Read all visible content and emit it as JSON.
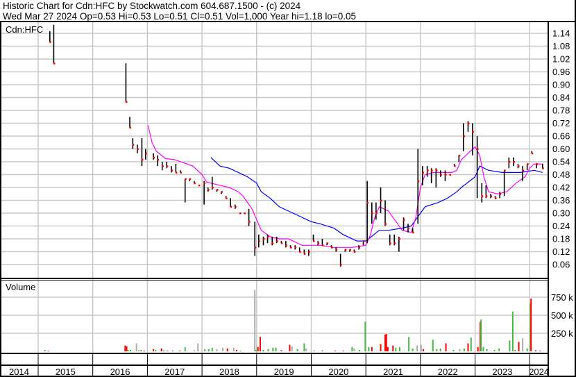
{
  "header": {
    "title": "Historic Chart for Cdn:HFC by Stockwatch.com 604.687.1500 - (c) 2024",
    "summary": "Wed Mar 27 2024  Op=0.53  Hi=0.53  Lo=0.51  Cl=0.51  Vol=1,000  Year hi=1.18  lo=0.05"
  },
  "colors": {
    "up": "#44bb44",
    "down": "#ff0000",
    "flat": "#aaaaaa",
    "ma_short": "#ff00ff",
    "ma_long": "#0000ff",
    "close_dot": "#ff0000",
    "grid": "#c8c8c8"
  },
  "chart_data": {
    "type": "line",
    "symbol_label": "Cdn:HFC",
    "volume_label": "Volume",
    "x_ticks": [
      "2014",
      "2015",
      "2016",
      "2017",
      "2018",
      "2019",
      "2020",
      "2021",
      "2022",
      "2023",
      "2024"
    ],
    "y_ticks": [
      "0.06",
      "0.12",
      "0.18",
      "0.24",
      "0.30",
      "0.36",
      "0.42",
      "0.48",
      "0.54",
      "0.60",
      "0.66",
      "0.72",
      "0.78",
      "0.84",
      "0.90",
      "0.96",
      "1.02",
      "1.08",
      "1.14"
    ],
    "ylim": [
      0.0,
      1.2
    ],
    "volume_ticks": [
      {
        "value": 250000,
        "label": "250 k"
      },
      {
        "value": 500000,
        "label": "500 k"
      },
      {
        "value": 750000,
        "label": "750 k"
      }
    ],
    "volume_ylim": [
      0,
      1000000
    ],
    "grid": true,
    "price_bars_fields": [
      "date",
      "high",
      "low",
      "close"
    ],
    "price_bars": [
      [
        "2015-03-20",
        1.15,
        1.1,
        1.1
      ],
      [
        "2015-04-15",
        1.18,
        1.0,
        1.0
      ],
      [
        "2016-08-10",
        1.0,
        0.82,
        0.82
      ],
      [
        "2016-09-05",
        0.75,
        0.7,
        0.7
      ],
      [
        "2016-09-25",
        0.65,
        0.6,
        0.62
      ],
      [
        "2016-10-25",
        0.62,
        0.58,
        0.6
      ],
      [
        "2016-11-25",
        0.65,
        0.52,
        0.55
      ],
      [
        "2016-12-20",
        0.6,
        0.55,
        0.58
      ],
      [
        "2017-02-10",
        0.58,
        0.55,
        0.56
      ],
      [
        "2017-03-10",
        0.57,
        0.52,
        0.55
      ],
      [
        "2017-04-10",
        0.54,
        0.5,
        0.52
      ],
      [
        "2017-05-10",
        0.54,
        0.51,
        0.52
      ],
      [
        "2017-06-10",
        0.52,
        0.49,
        0.5
      ],
      [
        "2017-07-10",
        0.53,
        0.49,
        0.49
      ],
      [
        "2017-08-10",
        0.5,
        0.49,
        0.49
      ],
      [
        "2017-09-10",
        0.46,
        0.35,
        0.46
      ],
      [
        "2017-10-10",
        0.46,
        0.45,
        0.46
      ],
      [
        "2017-11-10",
        0.45,
        0.44,
        0.44
      ],
      [
        "2017-12-10",
        0.43,
        0.43,
        0.43
      ],
      [
        "2018-01-15",
        0.45,
        0.34,
        0.44
      ],
      [
        "2018-02-10",
        0.42,
        0.4,
        0.41
      ],
      [
        "2018-03-10",
        0.47,
        0.41,
        0.42
      ],
      [
        "2018-04-10",
        0.41,
        0.4,
        0.41
      ],
      [
        "2018-05-10",
        0.4,
        0.39,
        0.4
      ],
      [
        "2018-06-10",
        0.38,
        0.37,
        0.37
      ],
      [
        "2018-07-10",
        0.37,
        0.33,
        0.33
      ],
      [
        "2018-08-10",
        0.34,
        0.32,
        0.33
      ],
      [
        "2018-09-10",
        0.3,
        0.3,
        0.3
      ],
      [
        "2018-10-10",
        0.3,
        0.3,
        0.3
      ],
      [
        "2018-11-10",
        0.32,
        0.24,
        0.26
      ],
      [
        "2018-12-20",
        0.26,
        0.1,
        0.14
      ],
      [
        "2019-01-15",
        0.2,
        0.14,
        0.17
      ],
      [
        "2019-02-15",
        0.19,
        0.15,
        0.18
      ],
      [
        "2019-03-15",
        0.2,
        0.16,
        0.19
      ],
      [
        "2019-04-15",
        0.19,
        0.15,
        0.16
      ],
      [
        "2019-05-15",
        0.19,
        0.16,
        0.17
      ],
      [
        "2019-06-15",
        0.17,
        0.16,
        0.16
      ],
      [
        "2019-07-15",
        0.17,
        0.14,
        0.15
      ],
      [
        "2019-08-15",
        0.15,
        0.14,
        0.14
      ],
      [
        "2019-09-15",
        0.15,
        0.13,
        0.14
      ],
      [
        "2019-10-15",
        0.14,
        0.12,
        0.12
      ],
      [
        "2019-11-15",
        0.13,
        0.11,
        0.11
      ],
      [
        "2019-12-15",
        0.13,
        0.1,
        0.12
      ],
      [
        "2020-01-15",
        0.2,
        0.17,
        0.17
      ],
      [
        "2020-02-15",
        0.17,
        0.15,
        0.16
      ],
      [
        "2020-03-15",
        0.18,
        0.15,
        0.15
      ],
      [
        "2020-04-15",
        0.16,
        0.15,
        0.16
      ],
      [
        "2020-05-15",
        0.15,
        0.14,
        0.14
      ],
      [
        "2020-06-15",
        0.14,
        0.12,
        0.13
      ],
      [
        "2020-07-15",
        0.11,
        0.05,
        0.06
      ],
      [
        "2020-08-15",
        0.13,
        0.12,
        0.13
      ],
      [
        "2020-09-15",
        0.13,
        0.12,
        0.13
      ],
      [
        "2020-10-15",
        0.13,
        0.12,
        0.12
      ],
      [
        "2020-11-15",
        0.15,
        0.13,
        0.14
      ],
      [
        "2020-12-15",
        0.17,
        0.15,
        0.17
      ],
      [
        "2021-01-10",
        0.45,
        0.16,
        0.35
      ],
      [
        "2021-02-10",
        0.35,
        0.25,
        0.3
      ],
      [
        "2021-03-10",
        0.35,
        0.27,
        0.3
      ],
      [
        "2021-04-10",
        0.42,
        0.3,
        0.36
      ],
      [
        "2021-05-10",
        0.36,
        0.24,
        0.25
      ],
      [
        "2021-06-10",
        0.2,
        0.15,
        0.16
      ],
      [
        "2021-07-10",
        0.2,
        0.15,
        0.16
      ],
      [
        "2021-08-10",
        0.19,
        0.12,
        0.18
      ],
      [
        "2021-09-10",
        0.28,
        0.22,
        0.27
      ],
      [
        "2021-10-10",
        0.25,
        0.21,
        0.23
      ],
      [
        "2021-11-10",
        0.23,
        0.21,
        0.21
      ],
      [
        "2021-12-15",
        0.6,
        0.25,
        0.45
      ],
      [
        "2022-01-15",
        0.52,
        0.43,
        0.49
      ],
      [
        "2022-02-15",
        0.52,
        0.47,
        0.5
      ],
      [
        "2022-03-15",
        0.51,
        0.44,
        0.5
      ],
      [
        "2022-04-15",
        0.51,
        0.42,
        0.5
      ],
      [
        "2022-05-15",
        0.5,
        0.47,
        0.48
      ],
      [
        "2022-06-15",
        0.5,
        0.45,
        0.48
      ],
      [
        "2022-07-15",
        0.48,
        0.48,
        0.48
      ],
      [
        "2022-08-15",
        0.53,
        0.52,
        0.52
      ],
      [
        "2022-09-15",
        0.57,
        0.54,
        0.57
      ],
      [
        "2022-10-15",
        0.72,
        0.59,
        0.66
      ],
      [
        "2022-11-15",
        0.73,
        0.68,
        0.72
      ],
      [
        "2022-12-15",
        0.72,
        0.57,
        0.68
      ],
      [
        "2023-01-15",
        0.66,
        0.37,
        0.6
      ],
      [
        "2023-02-15",
        0.44,
        0.35,
        0.38
      ],
      [
        "2023-03-15",
        0.43,
        0.37,
        0.38
      ],
      [
        "2023-04-15",
        0.39,
        0.37,
        0.38
      ],
      [
        "2023-05-15",
        0.38,
        0.37,
        0.37
      ],
      [
        "2023-06-15",
        0.4,
        0.37,
        0.39
      ],
      [
        "2023-07-15",
        0.5,
        0.38,
        0.5
      ],
      [
        "2023-08-15",
        0.56,
        0.51,
        0.54
      ],
      [
        "2023-09-15",
        0.56,
        0.52,
        0.54
      ],
      [
        "2023-10-15",
        0.53,
        0.51,
        0.52
      ],
      [
        "2023-11-15",
        0.52,
        0.45,
        0.5
      ],
      [
        "2023-12-15",
        0.53,
        0.5,
        0.53
      ],
      [
        "2024-01-15",
        0.59,
        0.58,
        0.58
      ],
      [
        "2024-02-15",
        0.53,
        0.51,
        0.53
      ],
      [
        "2024-03-27",
        0.53,
        0.51,
        0.51
      ]
    ],
    "ma_short": [
      [
        "2017-01-05",
        0.71
      ],
      [
        "2017-02-01",
        0.63
      ],
      [
        "2017-03-01",
        0.59
      ],
      [
        "2017-05-01",
        0.555
      ],
      [
        "2017-07-01",
        0.55
      ],
      [
        "2017-09-01",
        0.535
      ],
      [
        "2017-11-01",
        0.52
      ],
      [
        "2018-01-01",
        0.48
      ],
      [
        "2018-02-01",
        0.445
      ],
      [
        "2018-05-01",
        0.43
      ],
      [
        "2018-07-01",
        0.42
      ],
      [
        "2018-09-01",
        0.4
      ],
      [
        "2018-10-01",
        0.38
      ],
      [
        "2018-12-01",
        0.32
      ],
      [
        "2019-01-01",
        0.27
      ],
      [
        "2019-02-01",
        0.22
      ],
      [
        "2019-04-01",
        0.19
      ],
      [
        "2019-06-01",
        0.18
      ],
      [
        "2019-08-01",
        0.18
      ],
      [
        "2019-09-01",
        0.17
      ],
      [
        "2019-11-01",
        0.15
      ],
      [
        "2020-03-01",
        0.15
      ],
      [
        "2020-06-01",
        0.14
      ],
      [
        "2020-10-01",
        0.14
      ],
      [
        "2021-01-01",
        0.15
      ],
      [
        "2021-02-01",
        0.2
      ],
      [
        "2021-03-01",
        0.28
      ],
      [
        "2021-04-01",
        0.33
      ],
      [
        "2021-06-01",
        0.31
      ],
      [
        "2021-07-01",
        0.28
      ],
      [
        "2021-09-01",
        0.22
      ],
      [
        "2021-11-01",
        0.21
      ],
      [
        "2021-12-01",
        0.28
      ],
      [
        "2022-01-01",
        0.42
      ],
      [
        "2022-02-01",
        0.48
      ],
      [
        "2022-04-01",
        0.49
      ],
      [
        "2022-08-01",
        0.49
      ],
      [
        "2022-09-01",
        0.5
      ],
      [
        "2022-10-01",
        0.55
      ],
      [
        "2022-11-01",
        0.57
      ],
      [
        "2023-01-01",
        0.61
      ],
      [
        "2023-02-01",
        0.57
      ],
      [
        "2023-03-01",
        0.47
      ],
      [
        "2023-04-01",
        0.4
      ],
      [
        "2023-06-01",
        0.39
      ],
      [
        "2023-08-01",
        0.4
      ],
      [
        "2023-10-01",
        0.44
      ],
      [
        "2023-12-01",
        0.47
      ],
      [
        "2024-01-01",
        0.51
      ],
      [
        "2024-02-01",
        0.53
      ],
      [
        "2024-03-27",
        0.53
      ]
    ],
    "ma_long": [
      [
        "2018-03-01",
        0.56
      ],
      [
        "2018-05-01",
        0.52
      ],
      [
        "2018-07-01",
        0.51
      ],
      [
        "2018-09-01",
        0.49
      ],
      [
        "2018-11-01",
        0.47
      ],
      [
        "2019-01-01",
        0.44
      ],
      [
        "2019-02-01",
        0.4
      ],
      [
        "2019-04-01",
        0.37
      ],
      [
        "2019-06-01",
        0.33
      ],
      [
        "2019-09-01",
        0.3
      ],
      [
        "2020-01-01",
        0.26
      ],
      [
        "2020-03-01",
        0.25
      ],
      [
        "2020-06-01",
        0.23
      ],
      [
        "2020-08-01",
        0.2
      ],
      [
        "2020-11-01",
        0.17
      ],
      [
        "2021-01-01",
        0.17
      ],
      [
        "2021-04-01",
        0.22
      ],
      [
        "2021-06-01",
        0.22
      ],
      [
        "2021-09-01",
        0.23
      ],
      [
        "2021-11-01",
        0.24
      ],
      [
        "2022-01-01",
        0.3
      ],
      [
        "2022-02-01",
        0.33
      ],
      [
        "2022-05-01",
        0.35
      ],
      [
        "2022-07-01",
        0.37
      ],
      [
        "2022-09-01",
        0.4
      ],
      [
        "2022-10-01",
        0.42
      ],
      [
        "2023-01-01",
        0.47
      ],
      [
        "2023-02-01",
        0.52
      ],
      [
        "2023-04-01",
        0.5
      ],
      [
        "2023-07-01",
        0.49
      ],
      [
        "2023-11-01",
        0.49
      ],
      [
        "2024-02-01",
        0.5
      ],
      [
        "2024-03-27",
        0.49
      ]
    ],
    "volume_fields": [
      "date",
      "volume",
      "direction"
    ],
    "volume": [
      [
        "2015-02-15",
        20000,
        "up"
      ],
      [
        "2015-03-10",
        8000,
        "down"
      ],
      [
        "2016-08-05",
        80000,
        "down"
      ],
      [
        "2016-08-15",
        70000,
        "down"
      ],
      [
        "2016-08-25",
        20000,
        "up"
      ],
      [
        "2016-09-10",
        20000,
        "up"
      ],
      [
        "2016-10-20",
        110000,
        "flat"
      ],
      [
        "2016-11-05",
        15000,
        "up"
      ],
      [
        "2016-11-20",
        20000,
        "up"
      ],
      [
        "2016-12-10",
        10000,
        "down"
      ],
      [
        "2017-02-10",
        30000,
        "down"
      ],
      [
        "2017-02-25",
        20000,
        "up"
      ],
      [
        "2017-04-05",
        40000,
        "down"
      ],
      [
        "2017-04-20",
        15000,
        "up"
      ],
      [
        "2017-05-15",
        10000,
        "down"
      ],
      [
        "2017-06-20",
        15000,
        "flat"
      ],
      [
        "2017-08-05",
        10000,
        "down"
      ],
      [
        "2017-09-10",
        60000,
        "up"
      ],
      [
        "2017-11-10",
        15000,
        "flat"
      ],
      [
        "2017-12-05",
        110000,
        "flat"
      ],
      [
        "2018-01-20",
        30000,
        "up"
      ],
      [
        "2018-02-15",
        30000,
        "up"
      ],
      [
        "2018-03-10",
        50000,
        "up"
      ],
      [
        "2018-04-10",
        30000,
        "flat"
      ],
      [
        "2018-05-20",
        50000,
        "flat"
      ],
      [
        "2018-06-20",
        40000,
        "down"
      ],
      [
        "2018-08-01",
        50000,
        "flat"
      ],
      [
        "2018-08-20",
        20000,
        "down"
      ],
      [
        "2018-09-15",
        10000,
        "up"
      ],
      [
        "2018-12-20",
        850000,
        "flat"
      ],
      [
        "2018-12-28",
        20000,
        "up"
      ],
      [
        "2019-01-10",
        60000,
        "down"
      ],
      [
        "2019-01-25",
        200000,
        "down"
      ],
      [
        "2019-02-15",
        20000,
        "up"
      ],
      [
        "2019-03-20",
        30000,
        "up"
      ],
      [
        "2019-04-20",
        50000,
        "up"
      ],
      [
        "2019-05-10",
        50000,
        "up"
      ],
      [
        "2019-06-15",
        15000,
        "down"
      ],
      [
        "2019-08-10",
        90000,
        "down"
      ],
      [
        "2019-08-25",
        70000,
        "flat"
      ],
      [
        "2019-10-01",
        30000,
        "up"
      ],
      [
        "2019-11-15",
        110000,
        "up"
      ],
      [
        "2019-11-28",
        40000,
        "flat"
      ],
      [
        "2020-01-20",
        15000,
        "flat"
      ],
      [
        "2020-03-15",
        15000,
        "up"
      ],
      [
        "2020-06-10",
        10000,
        "down"
      ],
      [
        "2020-08-05",
        10000,
        "down"
      ],
      [
        "2020-10-01",
        60000,
        "up"
      ],
      [
        "2020-10-15",
        40000,
        "flat"
      ],
      [
        "2020-11-20",
        20000,
        "up"
      ],
      [
        "2020-12-28",
        410000,
        "up"
      ],
      [
        "2021-01-20",
        60000,
        "up"
      ],
      [
        "2021-02-10",
        60000,
        "down"
      ],
      [
        "2021-04-10",
        100000,
        "down"
      ],
      [
        "2021-05-10",
        230000,
        "down"
      ],
      [
        "2021-05-18",
        240000,
        "down"
      ],
      [
        "2021-05-28",
        60000,
        "down"
      ],
      [
        "2021-07-01",
        80000,
        "down"
      ],
      [
        "2021-07-20",
        50000,
        "up"
      ],
      [
        "2021-08-15",
        60000,
        "up"
      ],
      [
        "2021-10-15",
        200000,
        "up"
      ],
      [
        "2021-11-10",
        40000,
        "up"
      ],
      [
        "2021-12-10",
        80000,
        "flat"
      ],
      [
        "2022-01-05",
        90000,
        "flat"
      ],
      [
        "2022-01-20",
        30000,
        "down"
      ],
      [
        "2022-03-25",
        160000,
        "up"
      ],
      [
        "2022-04-20",
        30000,
        "up"
      ],
      [
        "2022-05-15",
        40000,
        "up"
      ],
      [
        "2022-06-20",
        110000,
        "down"
      ],
      [
        "2022-08-10",
        20000,
        "up"
      ],
      [
        "2022-09-20",
        30000,
        "flat"
      ],
      [
        "2022-10-20",
        40000,
        "up"
      ],
      [
        "2022-11-15",
        110000,
        "down"
      ],
      [
        "2022-12-05",
        190000,
        "up"
      ],
      [
        "2023-01-20",
        60000,
        "down"
      ],
      [
        "2023-02-05",
        410000,
        "down"
      ],
      [
        "2023-02-10",
        440000,
        "up"
      ],
      [
        "2023-02-25",
        60000,
        "up"
      ],
      [
        "2023-03-20",
        30000,
        "up"
      ],
      [
        "2023-05-10",
        20000,
        "up"
      ],
      [
        "2023-06-10",
        40000,
        "up"
      ],
      [
        "2023-08-20",
        150000,
        "up"
      ],
      [
        "2023-09-10",
        550000,
        "up"
      ],
      [
        "2023-09-25",
        20000,
        "up"
      ],
      [
        "2023-10-20",
        130000,
        "down"
      ],
      [
        "2023-11-15",
        180000,
        "flat"
      ],
      [
        "2023-12-15",
        40000,
        "up"
      ],
      [
        "2024-01-05",
        660000,
        "up"
      ],
      [
        "2024-01-10",
        730000,
        "down"
      ],
      [
        "2024-02-10",
        15000,
        "down"
      ],
      [
        "2024-03-10",
        10000,
        "down"
      ]
    ]
  }
}
